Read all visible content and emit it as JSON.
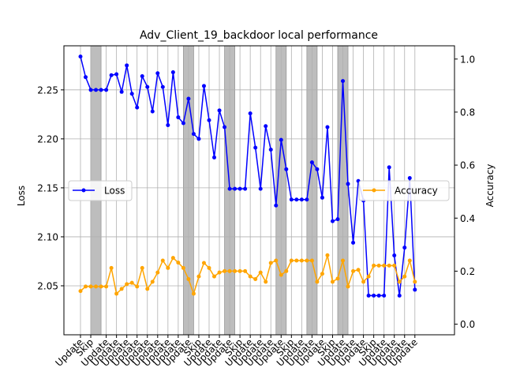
{
  "chart_data": {
    "type": "line",
    "title": "Adv_Client_19_backdoor local performance",
    "ylabel_left": "Loss",
    "ylabel_right": "Accuracy",
    "ylim_left": [
      2.0,
      2.295
    ],
    "ylim_right": [
      -0.04,
      1.05
    ],
    "yticks_left": [
      2.05,
      2.1,
      2.15,
      2.2,
      2.25
    ],
    "yticks_right": [
      0.0,
      0.2,
      0.4,
      0.6,
      0.8,
      1.0
    ],
    "grid": true,
    "legend_placement": "center-left (Loss), center-right (Accuracy)",
    "colors": {
      "loss": "#0000ff",
      "accuracy": "#ffa500",
      "skip_band": "#bdbdbd",
      "grid": "#b0b0b0"
    },
    "x_tick_labels": [
      "Update",
      "Skip",
      "Update",
      "Update",
      "Update",
      "Update",
      "Update",
      "Update",
      "Update",
      "Update",
      "Update",
      "Skip",
      "Update",
      "Update",
      "Update",
      "Skip",
      "Update",
      "Update",
      "Update",
      "Update",
      "Skip",
      "Update",
      "Update",
      "Update",
      "Skip",
      "Update",
      "Update",
      "Update",
      "Skip",
      "Update",
      "Update",
      "Update",
      "Update"
    ],
    "x_tick_positions": [
      0,
      2,
      5,
      7,
      9,
      11,
      13,
      15,
      17,
      19,
      21,
      23,
      25,
      27,
      29,
      31,
      33,
      35,
      37,
      39,
      41,
      43,
      45,
      47,
      49,
      51,
      53,
      55,
      57,
      59,
      61,
      63,
      65
    ],
    "skip_ranges": [
      [
        2,
        4
      ],
      [
        20,
        22
      ],
      [
        28,
        30
      ],
      [
        38,
        40
      ],
      [
        44,
        46
      ],
      [
        50,
        52
      ]
    ],
    "series": [
      {
        "name": "Loss",
        "axis": "left",
        "x": [
          0,
          1,
          2,
          3,
          4,
          5,
          6,
          7,
          8,
          9,
          10,
          11,
          12,
          13,
          14,
          15,
          16,
          17,
          18,
          19,
          20,
          21,
          22,
          23,
          24,
          25,
          26,
          27,
          28,
          29,
          30,
          31,
          32,
          33,
          34,
          35,
          36,
          37,
          38,
          39,
          40,
          41,
          42,
          43,
          44,
          45,
          46,
          47,
          48,
          49,
          50,
          51,
          52,
          53,
          54,
          55,
          56,
          57,
          58,
          59,
          60,
          61,
          62,
          63,
          64,
          65
        ],
        "values": [
          2.284,
          2.263,
          2.25,
          2.25,
          2.25,
          2.25,
          2.265,
          2.266,
          2.248,
          2.275,
          2.246,
          2.232,
          2.264,
          2.253,
          2.228,
          2.267,
          2.253,
          2.214,
          2.268,
          2.222,
          2.216,
          2.241,
          2.205,
          2.2,
          2.254,
          2.219,
          2.181,
          2.229,
          2.212,
          2.149,
          2.149,
          2.149,
          2.149,
          2.226,
          2.191,
          2.149,
          2.213,
          2.189,
          2.132,
          2.199,
          2.169,
          2.138,
          2.138,
          2.138,
          2.138,
          2.176,
          2.169,
          2.14,
          2.212,
          2.116,
          2.118,
          2.259,
          2.154,
          2.094,
          2.157,
          2.137,
          2.04,
          2.04,
          2.04,
          2.04,
          2.171,
          2.081,
          2.04,
          2.089,
          2.16,
          2.046
        ]
      },
      {
        "name": "Accuracy",
        "axis": "right",
        "x": [
          0,
          1,
          2,
          3,
          4,
          5,
          6,
          7,
          8,
          9,
          10,
          11,
          12,
          13,
          14,
          15,
          16,
          17,
          18,
          19,
          20,
          21,
          22,
          23,
          24,
          25,
          26,
          27,
          28,
          29,
          30,
          31,
          32,
          33,
          34,
          35,
          36,
          37,
          38,
          39,
          40,
          41,
          42,
          43,
          44,
          45,
          46,
          47,
          48,
          49,
          50,
          51,
          52,
          53,
          54,
          55,
          56,
          57,
          58,
          59,
          60,
          61,
          62,
          63,
          64,
          65
        ],
        "values": [
          0.125,
          0.142,
          0.142,
          0.142,
          0.142,
          0.142,
          0.212,
          0.115,
          0.133,
          0.151,
          0.156,
          0.142,
          0.212,
          0.133,
          0.16,
          0.195,
          0.24,
          0.212,
          0.25,
          0.232,
          0.212,
          0.17,
          0.115,
          0.18,
          0.231,
          0.212,
          0.18,
          0.195,
          0.2,
          0.2,
          0.2,
          0.2,
          0.2,
          0.18,
          0.17,
          0.195,
          0.16,
          0.231,
          0.24,
          0.186,
          0.2,
          0.24,
          0.24,
          0.24,
          0.24,
          0.24,
          0.16,
          0.19,
          0.26,
          0.16,
          0.172,
          0.24,
          0.142,
          0.2,
          0.205,
          0.16,
          0.18,
          0.221,
          0.221,
          0.221,
          0.221,
          0.221,
          0.16,
          0.18,
          0.24,
          0.16
        ]
      }
    ]
  }
}
